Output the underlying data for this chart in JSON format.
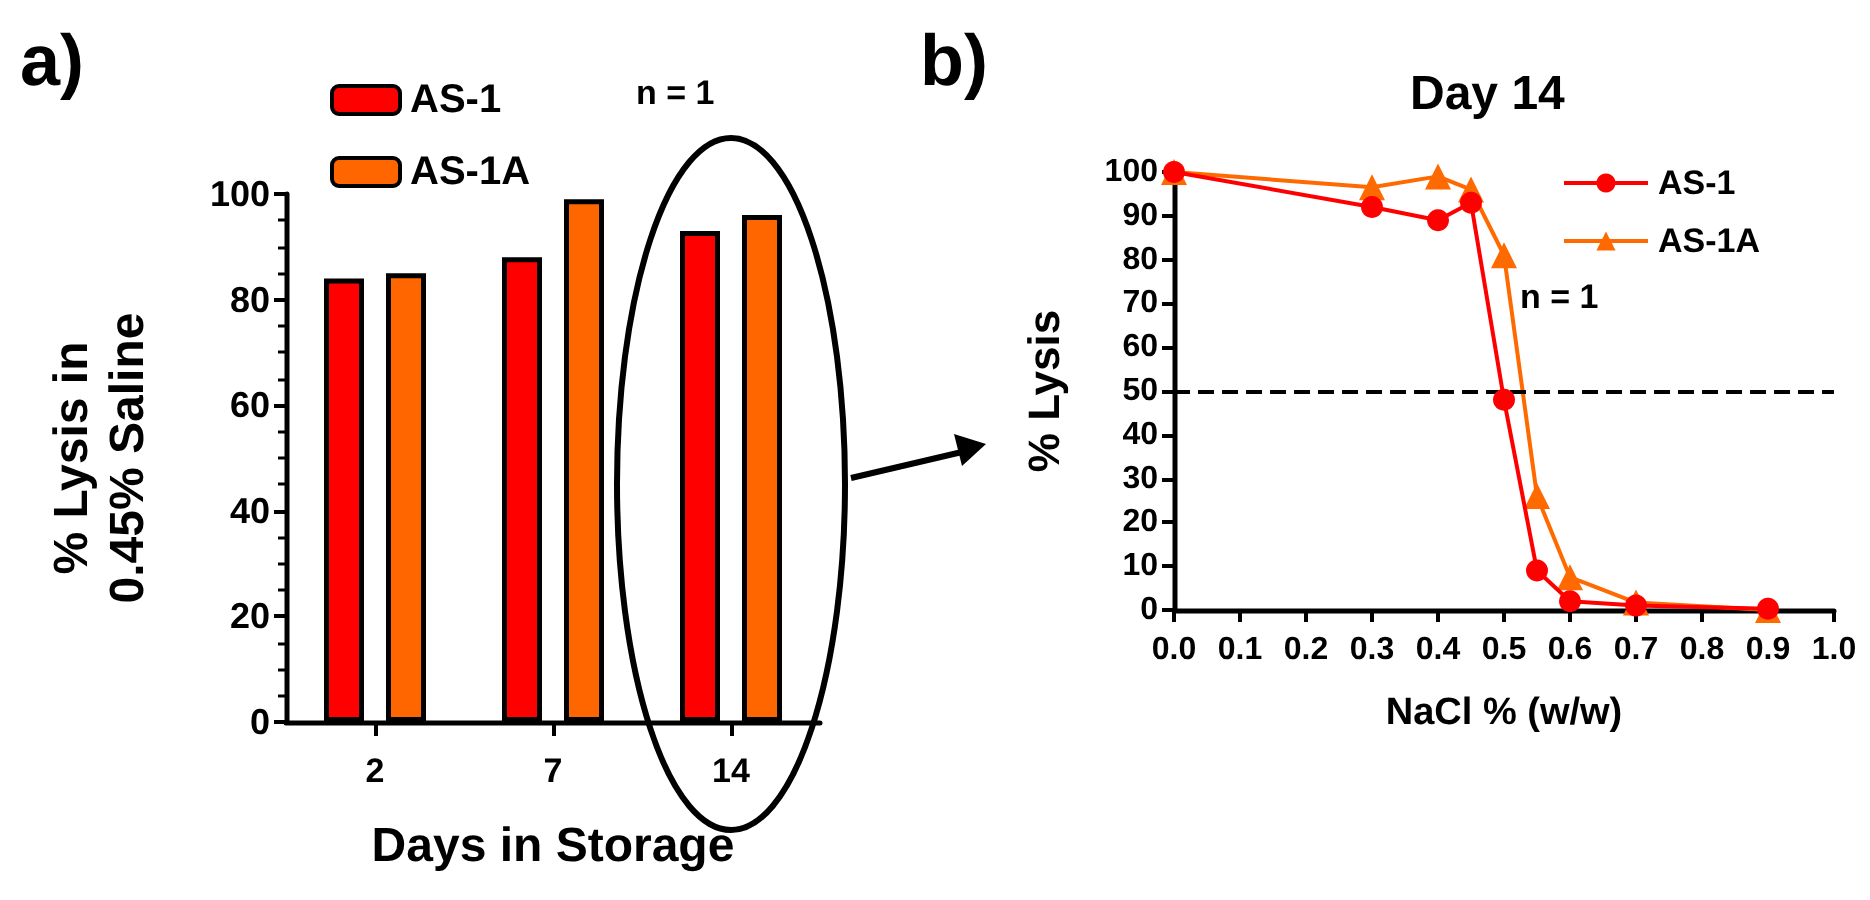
{
  "chart_data": [
    {
      "type": "bar",
      "categories": [
        "2",
        "7",
        "14"
      ],
      "xlabel": "Days in Storage",
      "ylabel": "% Lysis in\n0.45% Saline",
      "ylim": [
        0,
        100
      ],
      "yticks": [
        0,
        20,
        40,
        60,
        80,
        100
      ],
      "legend": "top left",
      "annotations": [
        "a)",
        "n = 1"
      ],
      "series": [
        {
          "name": "AS-1",
          "color": "#ff0000",
          "values": [
            84,
            88,
            93
          ]
        },
        {
          "name": "AS-1A",
          "color": "#ff6600",
          "values": [
            85,
            99,
            96
          ]
        }
      ]
    },
    {
      "type": "line",
      "title": "Day 14",
      "xlabel": "NaCl % (w/w)",
      "ylabel": "% Lysis",
      "xlim": [
        0,
        1
      ],
      "xticks": [
        {
          "value": 0,
          "label": "0.0"
        },
        {
          "value": 0.1,
          "label": "0.1"
        },
        {
          "value": 0.2,
          "label": "0.2"
        },
        {
          "value": 0.3,
          "label": "0.3"
        },
        {
          "value": 0.4,
          "label": "0.4"
        },
        {
          "value": 0.5,
          "label": "0.5"
        },
        {
          "value": 0.6,
          "label": "0.6"
        },
        {
          "value": 0.7,
          "label": "0.7"
        },
        {
          "value": 0.8,
          "label": "0.8"
        },
        {
          "value": 0.9,
          "label": "0.9"
        },
        {
          "value": 1,
          "label": "1.0"
        }
      ],
      "ylim": [
        0,
        100
      ],
      "yticks": [
        0,
        10,
        20,
        30,
        40,
        50,
        60,
        70,
        80,
        90,
        100
      ],
      "legend": "top right",
      "annotations": [
        "b)",
        "n = 1"
      ],
      "ref_lines": [
        {
          "axis": "y",
          "value": 50,
          "color": "#000000",
          "line_style": "dashed"
        }
      ],
      "series": [
        {
          "name": "AS-1",
          "color": "#ff0000",
          "marker": "circle",
          "x": [
            0,
            0.3,
            0.4,
            0.45,
            0.5,
            0.55,
            0.6,
            0.7,
            0.9
          ],
          "values": [
            100,
            92,
            89,
            93,
            48,
            9,
            2,
            1,
            0.3
          ]
        },
        {
          "name": "AS-1A",
          "color": "#ff6a00",
          "marker": "triangle",
          "x": [
            0,
            0.3,
            0.4,
            0.45,
            0.5,
            0.55,
            0.6,
            0.7,
            0.9
          ],
          "values": [
            100,
            96.5,
            99,
            96,
            81,
            26,
            7.5,
            1.7,
            0
          ]
        }
      ]
    }
  ]
}
